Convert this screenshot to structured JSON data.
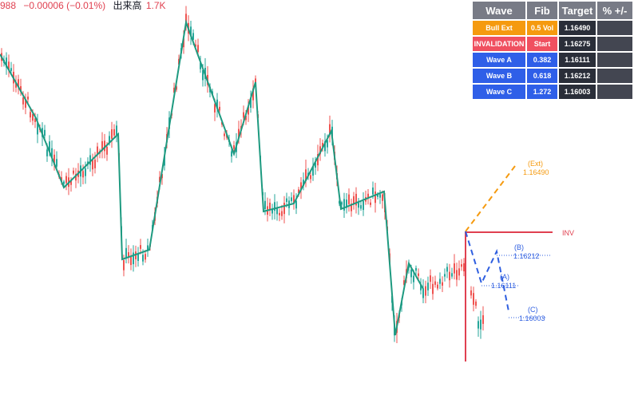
{
  "header": {
    "price": "988",
    "change": "−0.00006 (−0.01%)",
    "volume_label": "出来高",
    "volume": "1.7K"
  },
  "table": {
    "columns": [
      "Wave",
      "Fib",
      "Target",
      "% +/-"
    ],
    "rows": [
      [
        "Bull Ext",
        "0.5 Vol",
        "1.16490"
      ],
      [
        "INVALIDATION",
        "Start",
        "1.16275"
      ],
      [
        "Wave A",
        "0.382",
        "1.16111"
      ],
      [
        "Wave B",
        "0.618",
        "1.16212"
      ],
      [
        "Wave C",
        "1.272",
        "1.16003"
      ]
    ]
  },
  "annotations": {
    "ext_label": "(Ext)",
    "ext_price": "1.16490",
    "inv": "INV",
    "b_label": "(B)",
    "b_price": "1.16212",
    "a_label": "(A)",
    "a_price": "1.16111",
    "c_label": "(C)",
    "c_price": "1.16003"
  }
}
